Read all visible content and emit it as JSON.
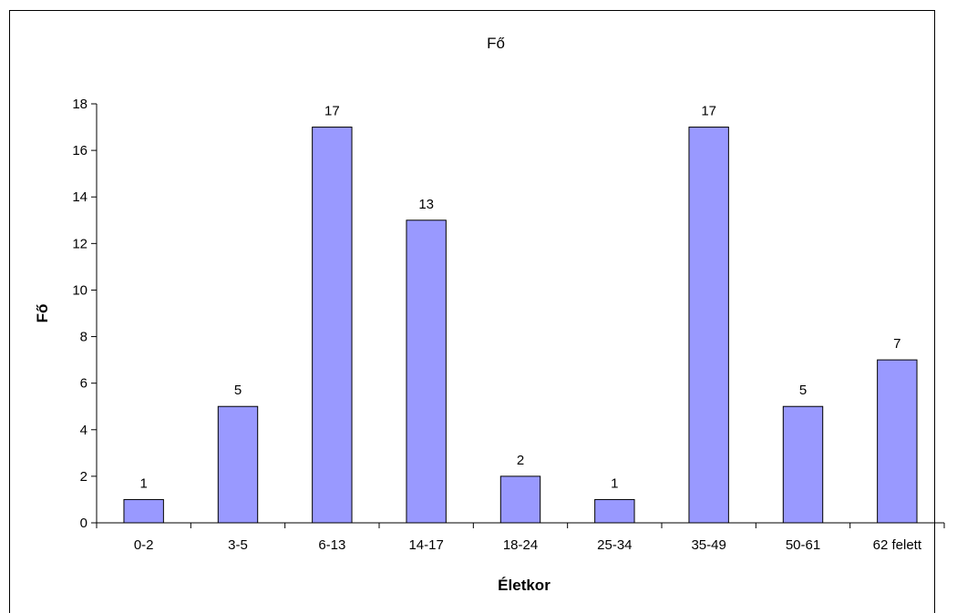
{
  "chart_data": {
    "type": "bar",
    "title": "Fő",
    "xlabel": "Életkor",
    "ylabel": "Fő",
    "categories": [
      "0-2",
      "3-5",
      "6-13",
      "14-17",
      "18-24",
      "25-34",
      "35-49",
      "50-61",
      "62 felett"
    ],
    "values": [
      1,
      5,
      17,
      13,
      2,
      1,
      17,
      5,
      7
    ],
    "ylim": [
      0,
      18
    ],
    "yticks": [
      0,
      2,
      4,
      6,
      8,
      10,
      12,
      14,
      16,
      18
    ],
    "data_labels": true,
    "grid": false,
    "legend": "none",
    "colors": {
      "bar_fill": "#9999ff",
      "bar_stroke": "#000000"
    }
  }
}
